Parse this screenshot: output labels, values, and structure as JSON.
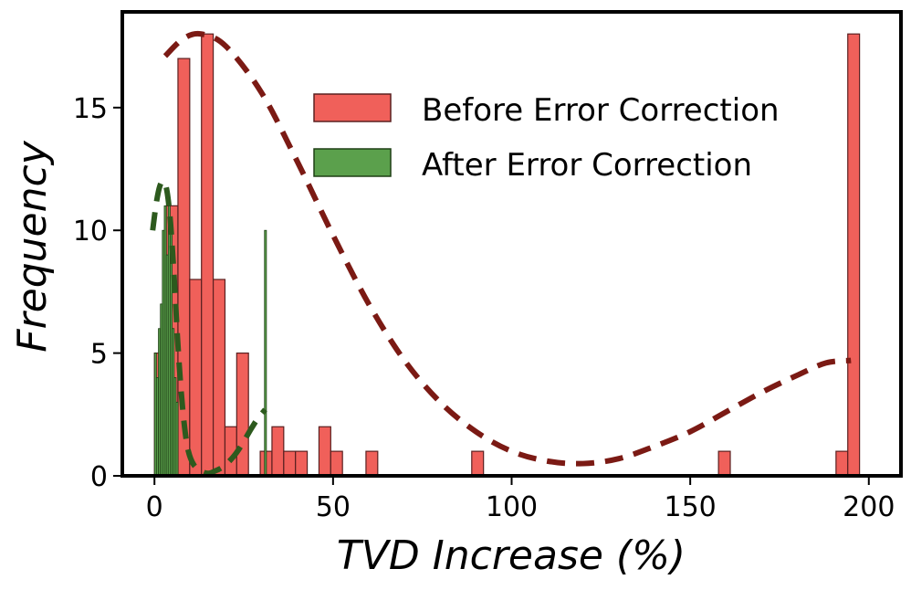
{
  "chart_data": {
    "type": "bar",
    "title": "",
    "xlabel": "TVD Increase (%)",
    "ylabel": "Frequency",
    "xlim": [
      -9,
      209
    ],
    "ylim": [
      0,
      18.9
    ],
    "xticks": [
      0,
      50,
      100,
      150,
      200
    ],
    "yticks": [
      0,
      5,
      10,
      15
    ],
    "grid": false,
    "legend_position": "top-right",
    "series": [
      {
        "name": "Before Error Correction",
        "color": "#f0605a",
        "edgecolor": "#5a2020",
        "bin_width": 3.29,
        "bins": [
          {
            "x": 0.0,
            "y": 5
          },
          {
            "x": 3.29,
            "y": 11
          },
          {
            "x": 6.58,
            "y": 17
          },
          {
            "x": 9.87,
            "y": 8
          },
          {
            "x": 13.16,
            "y": 18
          },
          {
            "x": 16.45,
            "y": 8
          },
          {
            "x": 19.74,
            "y": 2
          },
          {
            "x": 23.03,
            "y": 5
          },
          {
            "x": 29.61,
            "y": 1
          },
          {
            "x": 32.9,
            "y": 2
          },
          {
            "x": 36.19,
            "y": 1
          },
          {
            "x": 39.48,
            "y": 1
          },
          {
            "x": 46.06,
            "y": 2
          },
          {
            "x": 49.35,
            "y": 1
          },
          {
            "x": 59.22,
            "y": 1
          },
          {
            "x": 88.83,
            "y": 1
          },
          {
            "x": 157.92,
            "y": 1
          },
          {
            "x": 190.82,
            "y": 1
          },
          {
            "x": 194.11,
            "y": 18
          }
        ],
        "fit_curve": {
          "color": "#7b1a14",
          "points": [
            [
              3,
              17.1
            ],
            [
              8,
              17.8
            ],
            [
              13,
              18.0
            ],
            [
              20,
              17.5
            ],
            [
              30,
              15.6
            ],
            [
              40,
              12.8
            ],
            [
              50,
              9.8
            ],
            [
              60,
              7.0
            ],
            [
              70,
              4.7
            ],
            [
              80,
              3.0
            ],
            [
              90,
              1.8
            ],
            [
              100,
              1.0
            ],
            [
              110,
              0.6
            ],
            [
              120,
              0.5
            ],
            [
              130,
              0.7
            ],
            [
              140,
              1.2
            ],
            [
              150,
              1.8
            ],
            [
              160,
              2.6
            ],
            [
              170,
              3.4
            ],
            [
              180,
              4.1
            ],
            [
              188,
              4.6
            ],
            [
              195,
              4.7
            ]
          ]
        }
      },
      {
        "name": "After Error Correction",
        "color": "#5ba04c",
        "edgecolor": "#1e3f15",
        "bin_width": 0.55,
        "bins": [
          {
            "x": 0.0,
            "y": 5
          },
          {
            "x": 0.55,
            "y": 4
          },
          {
            "x": 1.1,
            "y": 6
          },
          {
            "x": 1.65,
            "y": 7
          },
          {
            "x": 2.2,
            "y": 10
          },
          {
            "x": 2.75,
            "y": 11
          },
          {
            "x": 3.3,
            "y": 9
          },
          {
            "x": 3.85,
            "y": 11
          },
          {
            "x": 4.4,
            "y": 10
          },
          {
            "x": 4.95,
            "y": 6
          },
          {
            "x": 5.5,
            "y": 4
          },
          {
            "x": 6.05,
            "y": 3
          },
          {
            "x": 30.8,
            "y": 10
          }
        ],
        "fit_curve": {
          "color": "#2d5a1e",
          "points": [
            [
              -0.5,
              10.0
            ],
            [
              0.5,
              11.1
            ],
            [
              1.5,
              11.8
            ],
            [
              2.5,
              12.0
            ],
            [
              3.5,
              11.6
            ],
            [
              4.5,
              10.3
            ],
            [
              5.5,
              8.1
            ],
            [
              6.5,
              5.5
            ],
            [
              7.5,
              3.4
            ],
            [
              8.5,
              1.9
            ],
            [
              9.5,
              1.0
            ],
            [
              11,
              0.45
            ],
            [
              13,
              0.2
            ],
            [
              15,
              0.1
            ],
            [
              17,
              0.2
            ],
            [
              19,
              0.35
            ],
            [
              21,
              0.6
            ],
            [
              23,
              0.95
            ],
            [
              25,
              1.4
            ],
            [
              27,
              1.9
            ],
            [
              29,
              2.35
            ],
            [
              31,
              2.7
            ]
          ]
        }
      }
    ]
  }
}
